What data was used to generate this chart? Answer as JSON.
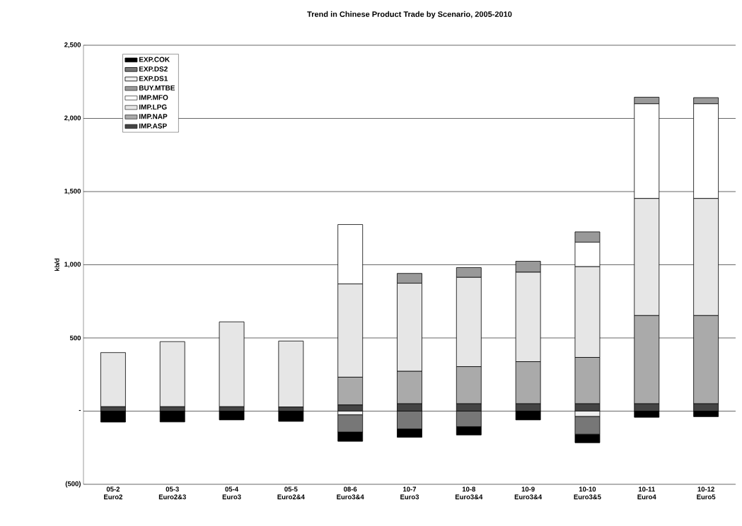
{
  "chart_data": {
    "type": "bar",
    "stacked": true,
    "title": "Trend in Chinese Product Trade by Scenario, 2005-2010",
    "ylabel": "kb/d",
    "categories": [
      "05-2 Euro2",
      "05-3 Euro2&3",
      "05-4 Euro3",
      "05-5 Euro2&4",
      "08-6 Euro3&4",
      "10-7 Euro3",
      "10-8 Euro3&4",
      "10-9 Euro3&4",
      "10-10 Euro3&5",
      "10-11 Euro4",
      "10-12 Euro5"
    ],
    "ylim": [
      -500,
      2500
    ],
    "yticks": [
      {
        "value": -500,
        "label": "(500)"
      },
      {
        "value": 0,
        "label": "-"
      },
      {
        "value": 500,
        "label": "500"
      },
      {
        "value": 1000,
        "label": "1,000"
      },
      {
        "value": 1500,
        "label": "1,500"
      },
      {
        "value": 2000,
        "label": "2,000"
      },
      {
        "value": 2500,
        "label": "2,500"
      }
    ],
    "grid": "y",
    "legend": "top left",
    "series": [
      {
        "name": "IMP.ASP",
        "color": "#444444",
        "values": [
          30,
          30,
          30,
          28,
          42,
          50,
          50,
          50,
          50,
          50,
          50
        ]
      },
      {
        "name": "IMP.NAP",
        "color": "#aaaaaa",
        "values": [
          null,
          null,
          null,
          null,
          190,
          222,
          254,
          288,
          317,
          603,
          603
        ]
      },
      {
        "name": "IMP.LPG",
        "color": "#e6e6e6",
        "values": [
          370,
          445,
          580,
          451,
          637,
          602,
          610,
          611,
          620,
          800,
          800
        ]
      },
      {
        "name": "IMP.MFO",
        "color": "#ffffff",
        "values": [
          null,
          null,
          null,
          null,
          406,
          null,
          null,
          null,
          167,
          647,
          647
        ]
      },
      {
        "name": "BUY.MTBE",
        "color": "#999999",
        "values": [
          null,
          null,
          null,
          null,
          null,
          67,
          67,
          75,
          71,
          45,
          42
        ]
      },
      {
        "name": "EXP.DS1",
        "color": "#eeeeee",
        "values": [
          null,
          null,
          null,
          null,
          -25,
          null,
          null,
          null,
          -36,
          null,
          null
        ]
      },
      {
        "name": "EXP.DS2",
        "color": "#777777",
        "values": [
          null,
          null,
          null,
          null,
          -118,
          -122,
          -106,
          null,
          -122,
          null,
          null
        ]
      },
      {
        "name": "EXP.COK",
        "color": "#000000",
        "values": [
          -75,
          -74,
          -60,
          -70,
          -63,
          -57,
          -57,
          -60,
          -58,
          -42,
          -38
        ]
      }
    ]
  }
}
